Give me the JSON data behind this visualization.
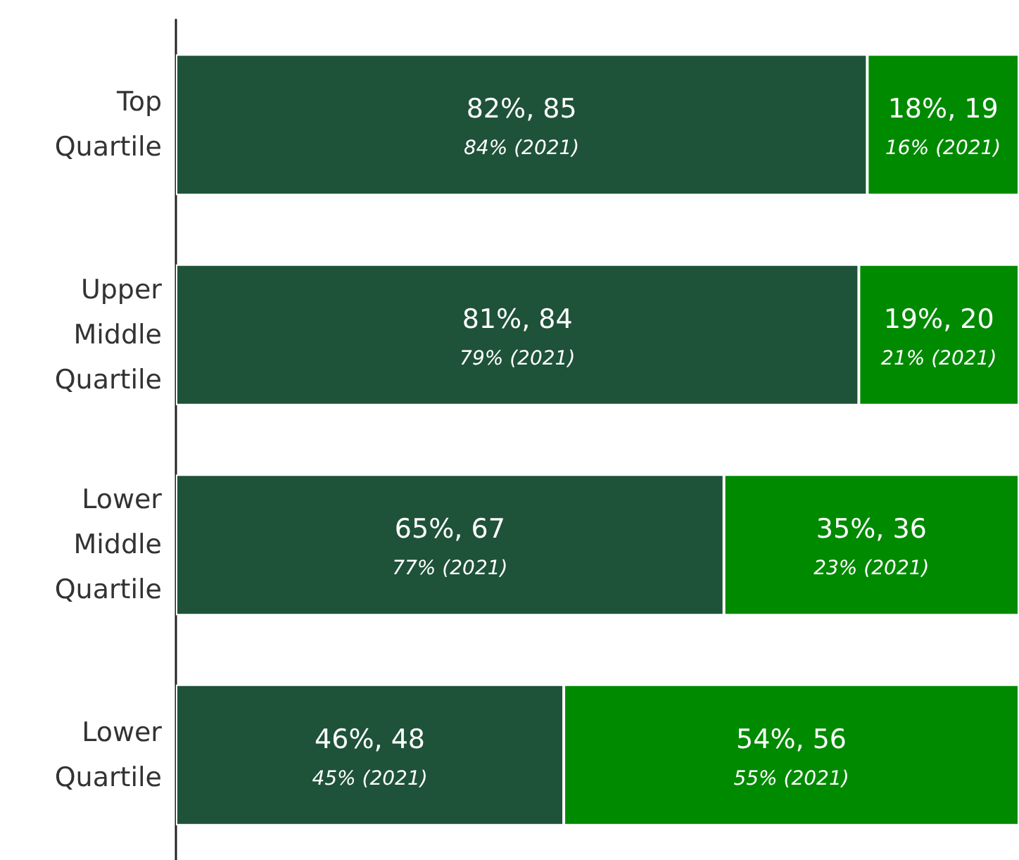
{
  "chart_data": {
    "type": "bar",
    "orientation": "horizontal",
    "stacked": true,
    "categories": [
      "Top Quartile",
      "Upper Middle Quartile",
      "Lower Middle Quartile",
      "Lower Quartile"
    ],
    "xlim": [
      0,
      100
    ],
    "tick_labels": "y",
    "grid": false,
    "series": [
      {
        "color": "#1e5239",
        "values": [
          82,
          81,
          65,
          46
        ],
        "value_labels": [
          "82%, 85\n84% (2021)",
          "81%, 84\n79% (2021)",
          "65%, 67\n77% (2021)",
          "46%, 48\n45% (2021)"
        ]
      },
      {
        "color": "#008a00",
        "values": [
          18,
          19,
          35,
          54
        ],
        "value_labels": [
          "18%, 19\n16% (2021)",
          "19%, 20\n21% (2021)",
          "35%, 36\n23% (2021)",
          "54%, 56\n55% (2021)"
        ]
      }
    ]
  }
}
